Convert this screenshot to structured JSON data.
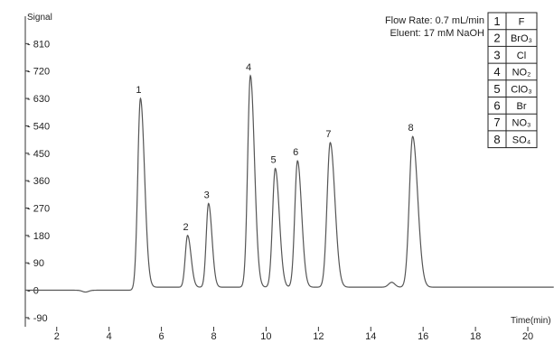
{
  "chart_data": {
    "type": "line",
    "ylabel": "Signal",
    "xlabel": "Time(min)",
    "xlim": [
      0.8,
      21
    ],
    "ylim": [
      -120,
      900
    ],
    "yticks": [
      -90,
      0,
      90,
      180,
      270,
      360,
      450,
      540,
      630,
      720,
      810
    ],
    "xticks": [
      2,
      4,
      6,
      8,
      10,
      12,
      14,
      16,
      18,
      20
    ],
    "conditions": [
      "Flow Rate: 0.7 mL/min",
      "Eluent: 17 mM NaOH"
    ],
    "baseline": 10,
    "peaks": [
      {
        "label": "1",
        "time": 5.2,
        "height": 630
      },
      {
        "label": "2",
        "time": 7.0,
        "height": 180
      },
      {
        "label": "3",
        "time": 7.8,
        "height": 285
      },
      {
        "label": "4",
        "time": 9.4,
        "height": 705
      },
      {
        "label": "5",
        "time": 10.35,
        "height": 400
      },
      {
        "label": "6",
        "time": 11.2,
        "height": 425
      },
      {
        "label": "7",
        "time": 12.45,
        "height": 485
      },
      {
        "label": "8",
        "time": 15.6,
        "height": 505
      }
    ],
    "system_features": [
      {
        "time": 3.1,
        "height": -6
      },
      {
        "time": 14.8,
        "height": 16
      }
    ]
  },
  "legend": [
    {
      "num": "1",
      "ion": "F"
    },
    {
      "num": "2",
      "ion": "BrO₃"
    },
    {
      "num": "3",
      "ion": "Cl"
    },
    {
      "num": "4",
      "ion": "NO₂"
    },
    {
      "num": "5",
      "ion": "ClO₃"
    },
    {
      "num": "6",
      "ion": "Br"
    },
    {
      "num": "7",
      "ion": "NO₃"
    },
    {
      "num": "8",
      "ion": "SO₄"
    }
  ]
}
